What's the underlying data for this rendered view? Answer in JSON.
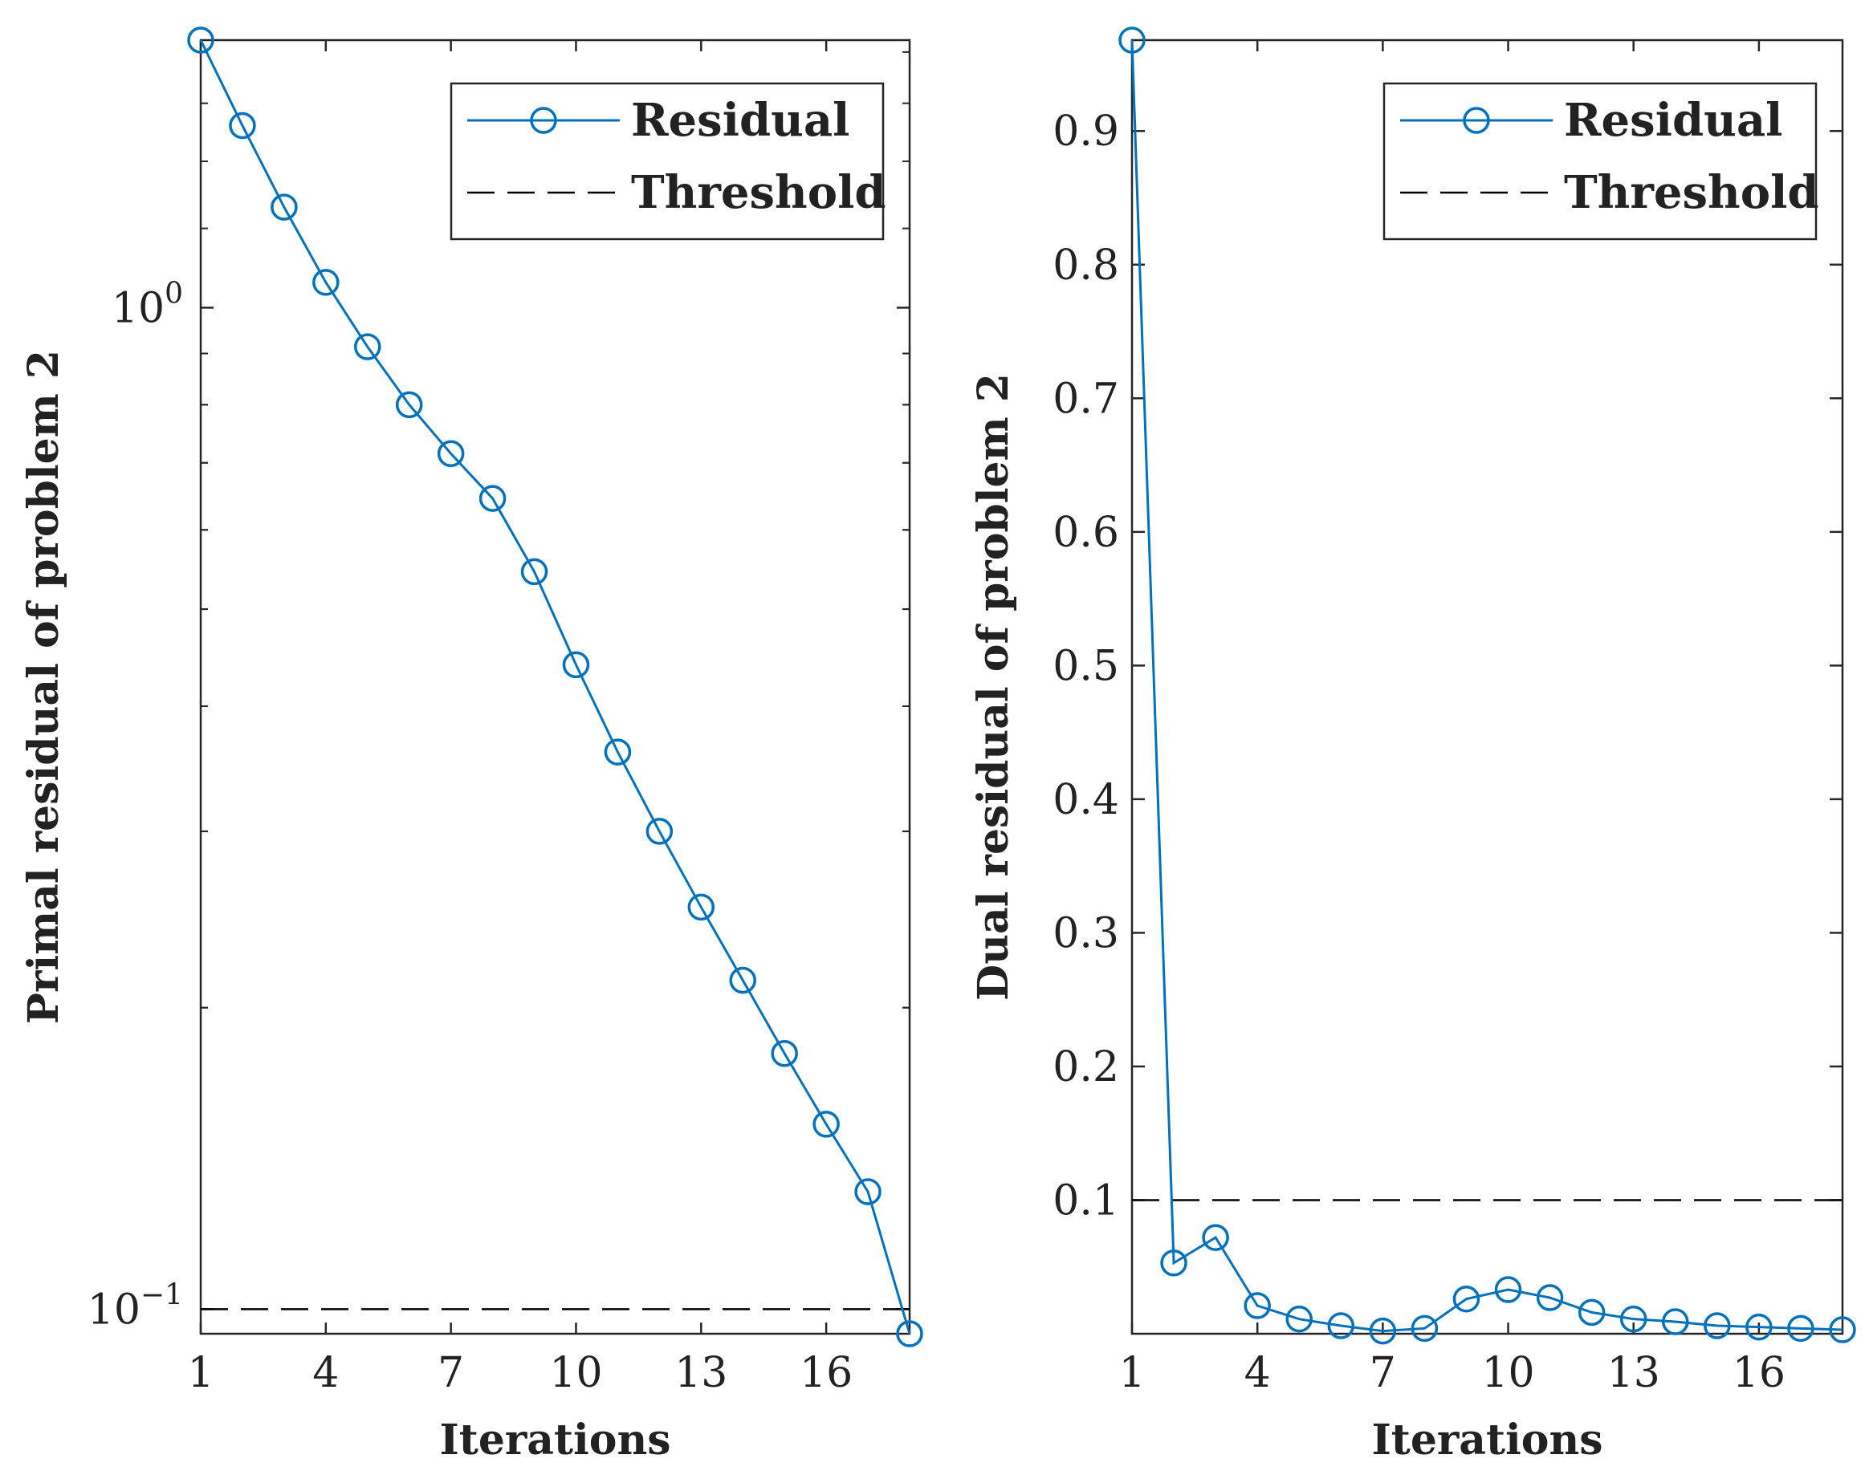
{
  "colors": {
    "series": "#0072BD",
    "threshold": "#000000",
    "axis": "#262626"
  },
  "chart_data": [
    {
      "type": "line",
      "yscale": "log",
      "x": [
        1,
        2,
        3,
        4,
        5,
        6,
        7,
        8,
        9,
        10,
        11,
        12,
        13,
        14,
        15,
        16,
        17,
        18
      ],
      "series": [
        {
          "name": "Residual",
          "marker": "circle",
          "values": [
            1.85,
            1.52,
            1.26,
            1.06,
            0.914,
            0.8,
            0.715,
            0.645,
            0.545,
            0.44,
            0.36,
            0.3,
            0.252,
            0.213,
            0.18,
            0.153,
            0.131,
            0.0945
          ]
        },
        {
          "name": "Threshold",
          "style": "dashed",
          "values": [
            0.1,
            0.1,
            0.1,
            0.1,
            0.1,
            0.1,
            0.1,
            0.1,
            0.1,
            0.1,
            0.1,
            0.1,
            0.1,
            0.1,
            0.1,
            0.1,
            0.1,
            0.1
          ]
        }
      ],
      "xlim": [
        1,
        18
      ],
      "ylim": [
        0.0945,
        1.85
      ],
      "xticks": [
        1,
        4,
        7,
        10,
        13,
        16
      ],
      "xtick_labels": [
        "1",
        "4",
        "7",
        "10",
        "13",
        "16"
      ],
      "yticks": [
        {
          "value": 1.0,
          "base": "10",
          "exp": "0"
        },
        {
          "value": 0.1,
          "base": "10",
          "exp": "−1"
        }
      ],
      "xlabel": "Iterations",
      "ylabel": "Primal residual of problem 2",
      "legend": {
        "placement": "top-right",
        "entries": [
          "Residual",
          "Threshold"
        ]
      }
    },
    {
      "type": "line",
      "yscale": "linear",
      "x": [
        1,
        2,
        3,
        4,
        5,
        6,
        7,
        8,
        9,
        10,
        11,
        12,
        13,
        14,
        15,
        16,
        17,
        18
      ],
      "series": [
        {
          "name": "Residual",
          "marker": "circle",
          "values": [
            0.968,
            0.053,
            0.072,
            0.021,
            0.011,
            0.006,
            0.002,
            0.004,
            0.026,
            0.033,
            0.027,
            0.016,
            0.011,
            0.009,
            0.006,
            0.005,
            0.004,
            0.003
          ]
        },
        {
          "name": "Threshold",
          "style": "dashed",
          "values": [
            0.1,
            0.1,
            0.1,
            0.1,
            0.1,
            0.1,
            0.1,
            0.1,
            0.1,
            0.1,
            0.1,
            0.1,
            0.1,
            0.1,
            0.1,
            0.1,
            0.1,
            0.1
          ]
        }
      ],
      "xlim": [
        1,
        18
      ],
      "ylim": [
        0,
        0.968
      ],
      "xticks": [
        1,
        4,
        7,
        10,
        13,
        16
      ],
      "xtick_labels": [
        "1",
        "4",
        "7",
        "10",
        "13",
        "16"
      ],
      "yticks": [
        0.1,
        0.2,
        0.3,
        0.4,
        0.5,
        0.6,
        0.7,
        0.8,
        0.9
      ],
      "ytick_labels": [
        "0.1",
        "0.2",
        "0.3",
        "0.4",
        "0.5",
        "0.6",
        "0.7",
        "0.8",
        "0.9"
      ],
      "xlabel": "Iterations",
      "ylabel": "Dual residual of problem 2",
      "legend": {
        "placement": "top-right",
        "entries": [
          "Residual",
          "Threshold"
        ]
      }
    }
  ]
}
